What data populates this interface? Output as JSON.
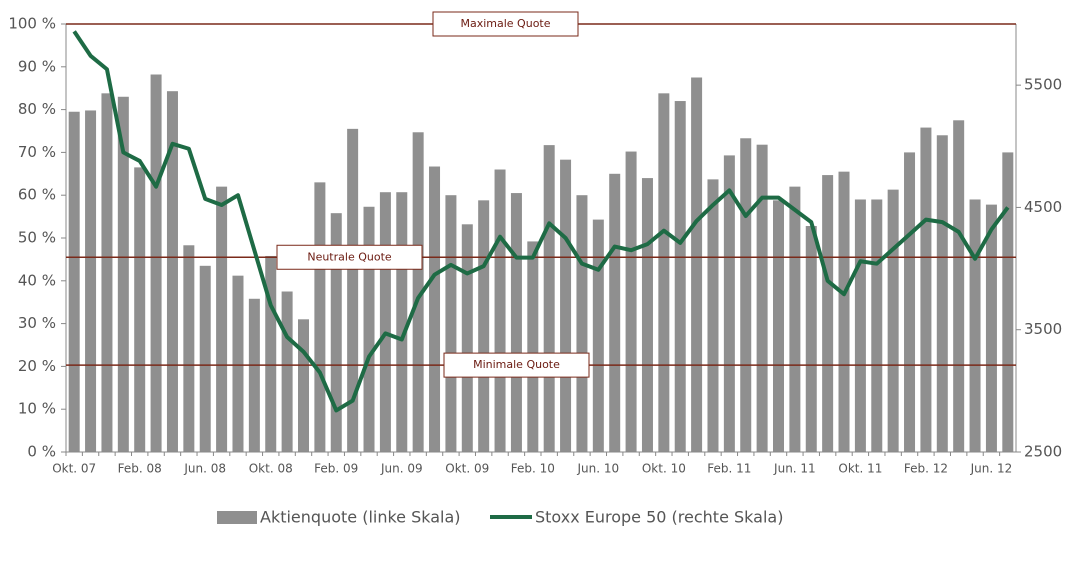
{
  "chart_data": {
    "type": "bar_line",
    "categories": [
      "Okt. 07",
      null,
      null,
      null,
      "Feb. 08",
      null,
      null,
      null,
      "Jun. 08",
      null,
      null,
      null,
      "Okt. 08",
      null,
      null,
      null,
      "Feb. 09",
      null,
      null,
      null,
      "Jun. 09",
      null,
      null,
      null,
      "Okt. 09",
      null,
      null,
      null,
      "Feb. 10",
      null,
      null,
      null,
      "Jun. 10",
      null,
      null,
      null,
      "Okt. 10",
      null,
      null,
      null,
      "Feb. 11",
      null,
      null,
      null,
      "Jun. 11",
      null,
      null,
      null,
      "Okt. 11",
      null,
      null,
      null,
      "Feb. 12",
      null,
      null,
      null,
      "Jun. 12",
      null
    ],
    "series": [
      {
        "name": "Aktienquote (linke Skala)",
        "color": "#8f8f8f",
        "type": "bar",
        "values": [
          79.5,
          79.8,
          83.8,
          83,
          66.5,
          88.2,
          84.3,
          48.3,
          43.5,
          62,
          41.2,
          35.8,
          45.8,
          37.5,
          31,
          63,
          55.8,
          75.5,
          57.3,
          60.7,
          60.7,
          74.7,
          66.7,
          60,
          53.2,
          58.8,
          66,
          60.5,
          49.2,
          71.7,
          68.3,
          60,
          54.3,
          65,
          70.2,
          64,
          83.8,
          82,
          87.5,
          63.7,
          69.3,
          73.3,
          71.8,
          58.8,
          62,
          52.8,
          64.7,
          65.5,
          59,
          59,
          61.3,
          70,
          75.8,
          74,
          77.5,
          59,
          57.8,
          70
        ]
      },
      {
        "name": "Stoxx Europe 50 (rechte Skala)",
        "color": "#1e6b45",
        "type": "line",
        "axis": "y2",
        "values": [
          5940,
          5740,
          5630,
          4950,
          4880,
          4670,
          5020,
          4980,
          4570,
          4520,
          4600,
          4150,
          3700,
          3440,
          3320,
          3150,
          2840,
          2920,
          3280,
          3470,
          3420,
          3760,
          3950,
          4030,
          3960,
          4020,
          4260,
          4090,
          4090,
          4370,
          4250,
          4040,
          3990,
          4180,
          4150,
          4200,
          4310,
          4210,
          4390,
          4520,
          4640,
          4430,
          4580,
          4580,
          4480,
          4380,
          3900,
          3790,
          4060,
          4040,
          4160,
          4280,
          4400,
          4380,
          4300,
          4080,
          4320,
          4500
        ]
      }
    ],
    "ylim": [
      0,
      100
    ],
    "yticks": [
      {
        "value": 0,
        "label": "0 %"
      },
      {
        "value": 10,
        "label": "10 %"
      },
      {
        "value": 20,
        "label": "20 %"
      },
      {
        "value": 30,
        "label": "30 %"
      },
      {
        "value": 40,
        "label": "40 %"
      },
      {
        "value": 50,
        "label": "50 %"
      },
      {
        "value": 60,
        "label": "60 %"
      },
      {
        "value": 70,
        "label": "70 %"
      },
      {
        "value": 80,
        "label": "80 %"
      },
      {
        "value": 90,
        "label": "90 %"
      },
      {
        "value": 100,
        "label": "100 %"
      }
    ],
    "y2lim": [
      2500,
      6000
    ],
    "y2ticks": [
      2500,
      3500,
      4500,
      5500
    ],
    "annotations": [
      {
        "label": "Maximale Quote",
        "value": 100
      },
      {
        "label": "Neutrale Quote",
        "value": 45.5
      },
      {
        "label": "Minimale Quote",
        "value": 20.3
      }
    ],
    "annotation_color": "#7a2a1a",
    "legend": "bottom"
  }
}
